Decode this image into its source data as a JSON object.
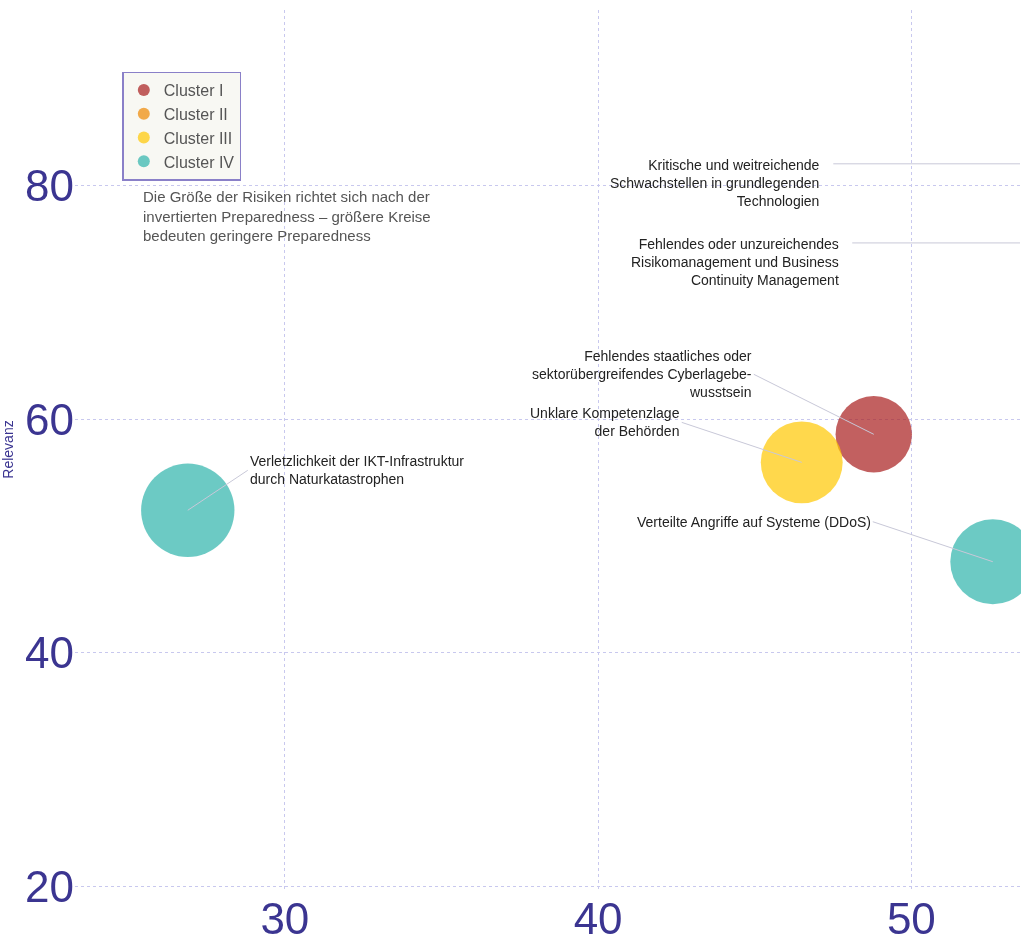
{
  "chart_data": {
    "type": "bubble",
    "ylabel": "Relevanz",
    "series": [
      {
        "name": "Cluster I",
        "color": "#a81c1c",
        "x": [
          48.8
        ],
        "values": [
          58.7
        ],
        "sizes": [
          0.67
        ]
      },
      {
        "name": "Cluster II",
        "color": "#ee8800"
      },
      {
        "name": "Cluster III",
        "color": "#ffc800",
        "x": [
          46.5
        ],
        "values": [
          56.3
        ],
        "sizes": [
          0.77
        ]
      },
      {
        "name": "Cluster IV",
        "color": "#2db3ab",
        "x": [
          26.9,
          52.6
        ],
        "values": [
          52.2,
          47.8
        ],
        "sizes": [
          1,
          0.83
        ]
      }
    ],
    "annotations": [
      "Kritische und weitreichende\nSchwachstellen in grundlegenden\nTechnologien",
      "Fehlendes oder unzureichendes\nRisikomanagement und Business\nContinuity Management",
      {
        "text": "Fehlendes staatliches oder\nsektorübergreifendes Cyberlagebe-\nwusstsein",
        "x": 48.8,
        "y": 58.7
      },
      {
        "text": "Unklare Kompetenzlage\nder Behörden",
        "x": 46.5,
        "y": 56.3
      },
      {
        "text": "Verteilte Angriffe auf Systeme (DDoS)",
        "x": 52.6,
        "y": 47.8
      },
      {
        "text": "Verletzlichkeit der IKT-Infrastruktur\ndurch Naturkatastrophen",
        "x": 26.9,
        "y": 52.2
      },
      "Die Größe der Risiken richtet sich nach der\ninvertierten Preparedness – größere Kreise\nbedeuten geringere Preparedness"
    ],
    "xlim": [
      23.3,
      53.5
    ],
    "ylim": [
      19.8,
      95
    ],
    "xticks": [
      30,
      40,
      50
    ],
    "yticks": [
      20,
      40,
      60,
      80
    ],
    "grid": true,
    "legend": "top left",
    "marker": "circle"
  }
}
